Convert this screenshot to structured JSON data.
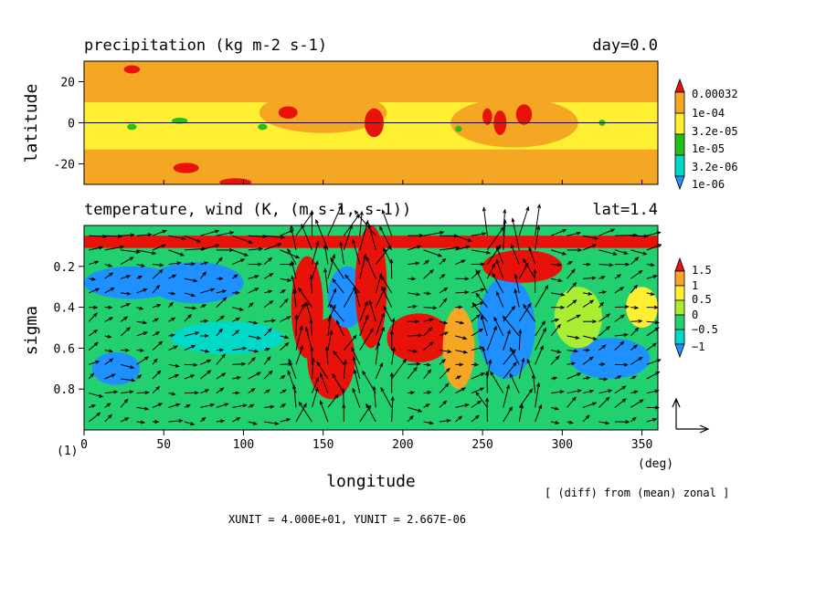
{
  "chart_data": [
    {
      "type": "heatmap",
      "title": "precipitation (kg m-2 s-1)",
      "title_right": "day=0.0",
      "ylabel": "latitude",
      "xlim": [
        0,
        360
      ],
      "ylim": [
        -30,
        30
      ],
      "yticks": [
        20,
        0,
        -20
      ],
      "colorbar": {
        "labels": [
          "0.00032",
          "1e-04",
          "3.2e-05",
          "1e-05",
          "3.2e-06",
          "1e-06"
        ],
        "colors": [
          "#e8120a",
          "#f5a623",
          "#ffef33",
          "#22c018",
          "#00d8c8",
          "#1e90ff"
        ]
      },
      "background_level": 2,
      "features": [
        {
          "x": 0,
          "y": 20,
          "rx": 360,
          "ry": 10,
          "level": 1
        },
        {
          "x": 0,
          "y": -22,
          "rx": 360,
          "ry": 9,
          "level": 1
        },
        {
          "x": 150,
          "y": 5,
          "rx": 40,
          "ry": 10,
          "level": 1
        },
        {
          "x": 270,
          "y": 0,
          "rx": 40,
          "ry": 12,
          "level": 1
        },
        {
          "x": 120,
          "y": 20,
          "rx": 30,
          "ry": 6,
          "level": 1
        },
        {
          "x": 182,
          "y": 0,
          "rx": 6,
          "ry": 7,
          "level": 0
        },
        {
          "x": 128,
          "y": 5,
          "rx": 6,
          "ry": 3,
          "level": 0
        },
        {
          "x": 253,
          "y": 3,
          "rx": 3,
          "ry": 4,
          "level": 0
        },
        {
          "x": 261,
          "y": 0,
          "rx": 4,
          "ry": 6,
          "level": 0
        },
        {
          "x": 276,
          "y": 4,
          "rx": 5,
          "ry": 5,
          "level": 0
        },
        {
          "x": 64,
          "y": -22,
          "rx": 8,
          "ry": 2.5,
          "level": 0
        },
        {
          "x": 30,
          "y": 26,
          "rx": 5,
          "ry": 2,
          "level": 0
        },
        {
          "x": 95,
          "y": -29,
          "rx": 10,
          "ry": 2,
          "level": 0
        },
        {
          "x": 30,
          "y": -2,
          "rx": 3,
          "ry": 1.5,
          "level": 3
        },
        {
          "x": 60,
          "y": 1,
          "rx": 5,
          "ry": 1.5,
          "level": 3
        },
        {
          "x": 112,
          "y": -2,
          "rx": 3,
          "ry": 1.5,
          "level": 3
        },
        {
          "x": 235,
          "y": -3,
          "rx": 2,
          "ry": 1.5,
          "level": 3
        },
        {
          "x": 325,
          "y": 0,
          "rx": 2,
          "ry": 1.5,
          "level": 3
        }
      ],
      "hline": 0
    },
    {
      "type": "heatmap",
      "title": "temperature, wind (K, (m s-1, s-1))",
      "title_right": "lat=1.4",
      "xlabel": "longitude",
      "x_unit": "(deg)",
      "ylabel": "sigma",
      "panel_tag": "(1)",
      "xlim": [
        0,
        360
      ],
      "ylim": [
        1.0,
        0.0
      ],
      "xticks": [
        0,
        50,
        100,
        150,
        200,
        250,
        300,
        350
      ],
      "yticks": [
        0.2,
        0.4,
        0.6,
        0.8
      ],
      "colorbar": {
        "labels": [
          "1.5",
          "1",
          "0.5",
          "0",
          "−0.5",
          "−1"
        ],
        "colors": [
          "#e8120a",
          "#f5a623",
          "#ffef33",
          "#aaee33",
          "#22d070",
          "#00d8c8",
          "#1e90ff"
        ]
      },
      "background_level": 4,
      "features": [
        {
          "x": 0,
          "y": 0.08,
          "rx": 360,
          "ry": 0.03,
          "level": 0
        },
        {
          "x": 30,
          "y": 0.28,
          "rx": 30,
          "ry": 0.08,
          "level": 6
        },
        {
          "x": 70,
          "y": 0.28,
          "rx": 30,
          "ry": 0.1,
          "level": 6
        },
        {
          "x": 90,
          "y": 0.55,
          "rx": 35,
          "ry": 0.08,
          "level": 5
        },
        {
          "x": 20,
          "y": 0.7,
          "rx": 15,
          "ry": 0.08,
          "level": 6
        },
        {
          "x": 140,
          "y": 0.4,
          "rx": 10,
          "ry": 0.25,
          "level": 0
        },
        {
          "x": 155,
          "y": 0.65,
          "rx": 15,
          "ry": 0.2,
          "level": 0
        },
        {
          "x": 165,
          "y": 0.35,
          "rx": 12,
          "ry": 0.15,
          "level": 6
        },
        {
          "x": 180,
          "y": 0.3,
          "rx": 10,
          "ry": 0.3,
          "level": 0
        },
        {
          "x": 210,
          "y": 0.55,
          "rx": 20,
          "ry": 0.12,
          "level": 0
        },
        {
          "x": 235,
          "y": 0.6,
          "rx": 10,
          "ry": 0.2,
          "level": 1
        },
        {
          "x": 265,
          "y": 0.5,
          "rx": 18,
          "ry": 0.25,
          "level": 6
        },
        {
          "x": 275,
          "y": 0.2,
          "rx": 25,
          "ry": 0.08,
          "level": 0
        },
        {
          "x": 330,
          "y": 0.65,
          "rx": 25,
          "ry": 0.1,
          "level": 6
        },
        {
          "x": 310,
          "y": 0.45,
          "rx": 15,
          "ry": 0.15,
          "level": 3
        },
        {
          "x": 350,
          "y": 0.4,
          "rx": 10,
          "ry": 0.1,
          "level": 2
        }
      ],
      "vector_units": {
        "xunit": "4.000E+01",
        "yunit": "2.667E-06"
      }
    }
  ],
  "annotation": "[ (diff) from (mean) zonal ]",
  "units_note": "XUNIT = 4.000E+01, YUNIT = 2.667E-06"
}
